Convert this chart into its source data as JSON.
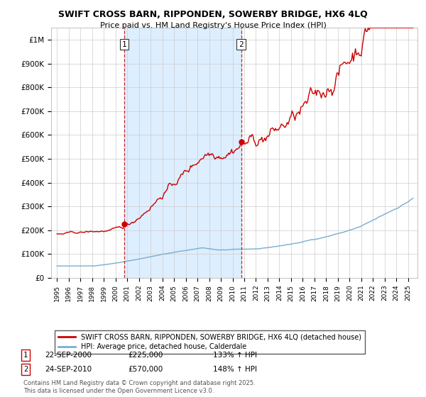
{
  "title": "SWIFT CROSS BARN, RIPPONDEN, SOWERBY BRIDGE, HX6 4LQ",
  "subtitle": "Price paid vs. HM Land Registry's House Price Index (HPI)",
  "legend_line1": "SWIFT CROSS BARN, RIPPONDEN, SOWERBY BRIDGE, HX6 4LQ (detached house)",
  "legend_line2": "HPI: Average price, detached house, Calderdale",
  "footnote": "Contains HM Land Registry data © Crown copyright and database right 2025.\nThis data is licensed under the Open Government Licence v3.0.",
  "marker1_date": "22-SEP-2000",
  "marker1_price": "£225,000",
  "marker1_hpi": "133% ↑ HPI",
  "marker2_date": "24-SEP-2010",
  "marker2_price": "£570,000",
  "marker2_hpi": "148% ↑ HPI",
  "red_color": "#cc0000",
  "blue_color": "#7aadcf",
  "shade_color": "#ddeeff",
  "background": "#ffffff",
  "grid_color": "#cccccc",
  "sale1_x": 2000.73,
  "sale1_y": 225000,
  "sale2_x": 2010.73,
  "sale2_y": 570000,
  "ylim": [
    0,
    1050000
  ],
  "xlim_start": 1994.5,
  "xlim_end": 2025.8,
  "yticks": [
    0,
    100000,
    200000,
    300000,
    400000,
    500000,
    600000,
    700000,
    800000,
    900000,
    1000000
  ],
  "ylabels": [
    "£0",
    "£100K",
    "£200K",
    "£300K",
    "£400K",
    "£500K",
    "£600K",
    "£700K",
    "£800K",
    "£900K",
    "£1M"
  ]
}
